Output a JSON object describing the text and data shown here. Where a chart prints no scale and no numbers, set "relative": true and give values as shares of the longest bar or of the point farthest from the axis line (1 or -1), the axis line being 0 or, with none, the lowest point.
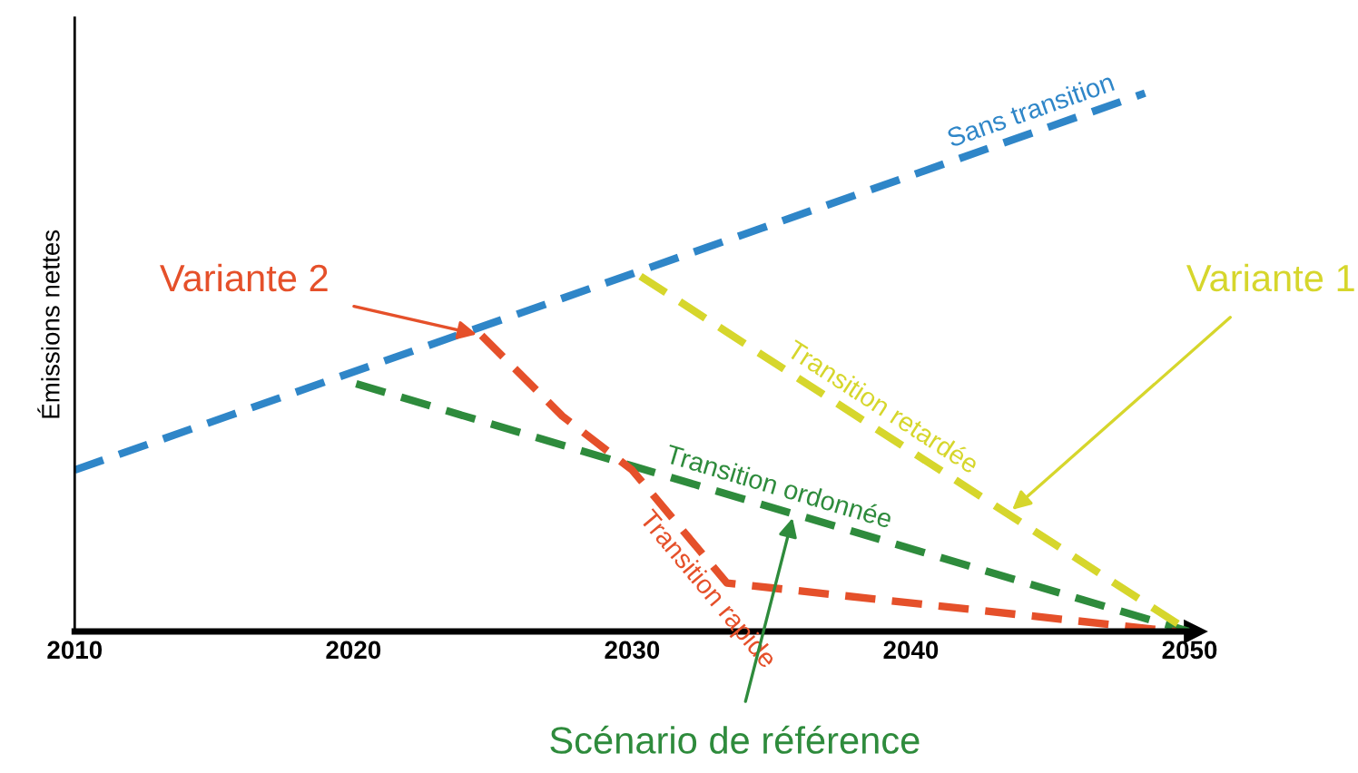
{
  "chart_data": {
    "type": "line",
    "relative": true,
    "ylabel": "Émissions nettes",
    "xlim": [
      2010,
      2050
    ],
    "xticks": [
      2010,
      2020,
      2030,
      2040,
      2050
    ],
    "line_style": "dashed",
    "marker": "none",
    "grid": false,
    "legend": false,
    "tick_labels": "x",
    "series": [
      {
        "name": "Sans transition",
        "color": "#2f86c8",
        "x": [
          2010,
          2048.4
        ],
        "values": [
          0.3,
          1
        ]
      },
      {
        "name": "Transition ordonnée",
        "color": "#2e8b3c",
        "x": [
          2020.1,
          2050
        ],
        "values": [
          0.46,
          0
        ]
      },
      {
        "name": "Transition rapide",
        "color": "#e5502a",
        "x": [
          2024.6,
          2027.5,
          2030,
          2033.4,
          2049.5
        ],
        "values": [
          0.55,
          0.4,
          0.3,
          0.09,
          0
        ]
      },
      {
        "name": "Transition retardée",
        "color": "#d6d62c",
        "x": [
          2030.3,
          2050
        ],
        "values": [
          0.66,
          0
        ]
      }
    ],
    "annotations": [
      {
        "text": "Variante 2",
        "x": 2024.6,
        "y": 0.55
      },
      {
        "text": "Variante 1",
        "x": 2043.5,
        "y": 0.22
      },
      {
        "text": "Scénario de référence",
        "x": 2035.8,
        "y": 0.22
      }
    ]
  }
}
